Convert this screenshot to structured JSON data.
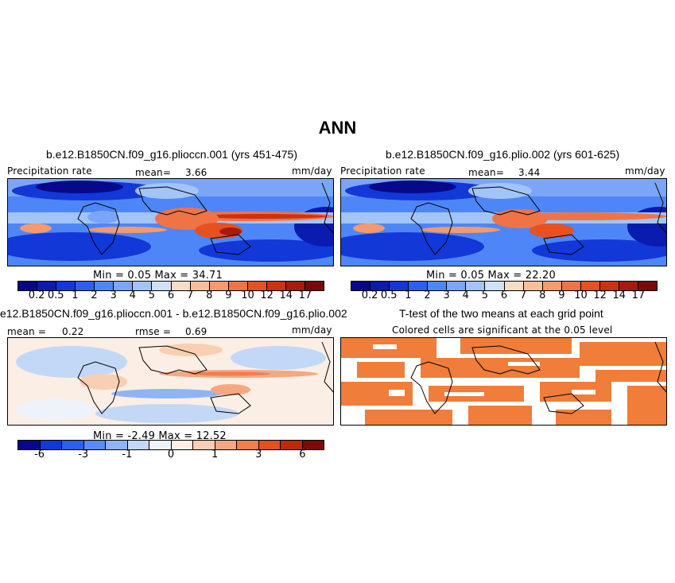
{
  "title": "ANN",
  "panels": [
    {
      "title": "b.e12.B1850CN.f09_g16.plioccn.001 (yrs 451-475)",
      "left_label": "Precipitation rate",
      "mean_label": "mean=",
      "mean_value": "3.66",
      "units": "mm/day",
      "min_max": "Min =    0.05  Max =  34.71",
      "colorbar_labels": [
        "0.2",
        "0.5",
        "1",
        "2",
        "3",
        "4",
        "5",
        "6",
        "7",
        "8",
        "9",
        "10",
        "12",
        "14",
        "17"
      ]
    },
    {
      "title": "b.e12.B1850CN.f09_g16.plio.002 (yrs 601-625)",
      "left_label": "Precipitation rate",
      "mean_label": "mean=",
      "mean_value": "3.44",
      "units": "mm/day",
      "min_max": "Min =    0.05  Max =  22.20",
      "colorbar_labels": [
        "0.2",
        "0.5",
        "1",
        "2",
        "3",
        "4",
        "5",
        "6",
        "7",
        "8",
        "9",
        "10",
        "12",
        "14",
        "17"
      ]
    },
    {
      "title": "e12.B1850CN.f09_g16.plioccn.001 - b.e12.B1850CN.f09_g16.plio.002",
      "mean_label": "mean =",
      "mean_value": "0.22",
      "rmse_label": "rmse =",
      "rmse_value": "0.69",
      "units": "mm/day",
      "min_max": "Min =  -2.49  Max =  12.52",
      "colorbar_labels": [
        "-6",
        "-3",
        "-1",
        "0",
        "1",
        "3",
        "6"
      ]
    },
    {
      "title": "T-test of the two means at each grid point",
      "subtitle": "Colored cells are significant at the 0.05 level"
    }
  ],
  "colors": {
    "precip_scale": [
      "#08088a",
      "#0a1bb0",
      "#1238d8",
      "#2c5ff0",
      "#4f86f7",
      "#79a6f7",
      "#a3c4f7",
      "#cfe0f7",
      "#f7dcc8",
      "#f7c09c",
      "#f59a6d",
      "#f07345",
      "#e8501f",
      "#cc3210",
      "#a81b0a",
      "#7a0a05"
    ],
    "diff_scale": [
      "#08088a",
      "#1238d8",
      "#2c5ff0",
      "#5a8bf5",
      "#8fb4f5",
      "#c3d8f7",
      "#eef3fb",
      "#fbeee4",
      "#f8cfb2",
      "#f4a882",
      "#ee7f4f",
      "#e0521f",
      "#b72d0a",
      "#7a0a05"
    ],
    "significant": "#f07d3a"
  }
}
